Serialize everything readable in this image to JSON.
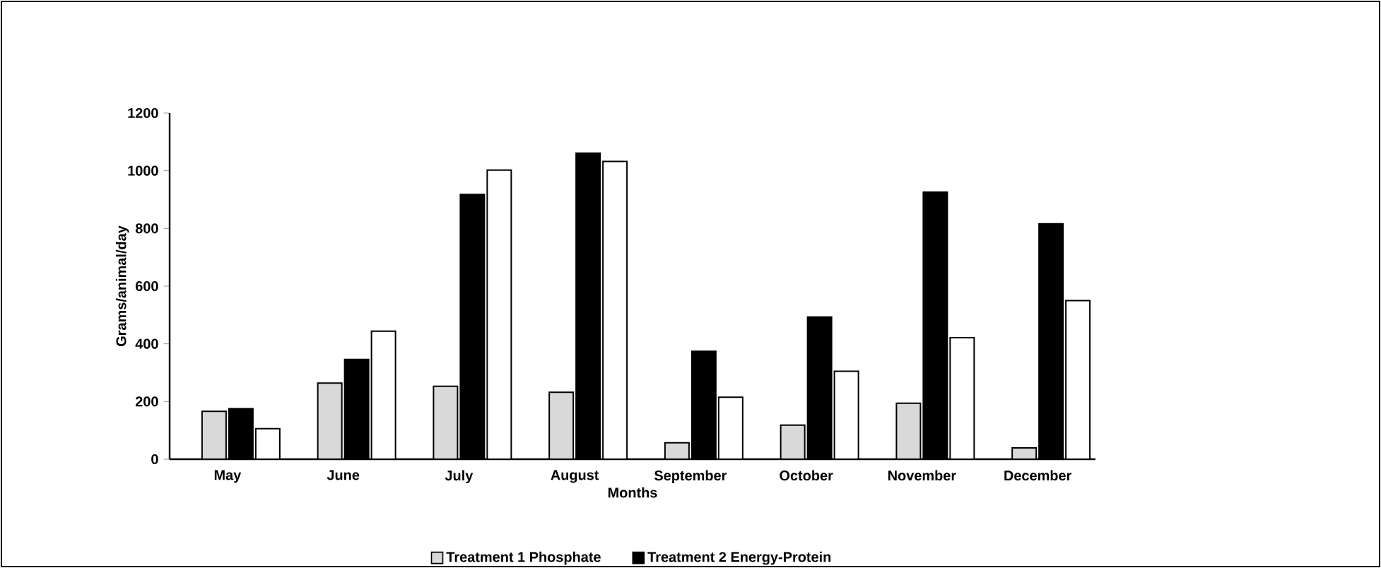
{
  "chart_data": {
    "type": "bar",
    "xlabel": "Months",
    "ylabel": "Grams/animal/day",
    "categories": [
      "May",
      "June",
      "July",
      "August",
      "September",
      "October",
      "November",
      "December"
    ],
    "series": [
      {
        "name": "Treatment 1 Phosphate",
        "color": "#d9d9d9",
        "values": [
          166,
          264,
          253,
          232,
          57,
          118,
          194,
          39
        ]
      },
      {
        "name": "Treatment 2 Energy-Protein",
        "color": "#000000",
        "values": [
          175,
          346,
          918,
          1061,
          374,
          493,
          926,
          816
        ]
      },
      {
        "color": "#ffffff",
        "values": [
          106,
          444,
          1002,
          1032,
          215,
          305,
          421,
          550
        ]
      }
    ],
    "ylim": [
      0,
      1200
    ],
    "yticks": [
      0,
      200,
      400,
      600,
      800,
      1000,
      1200
    ],
    "grid": false,
    "legend": "bottom"
  }
}
